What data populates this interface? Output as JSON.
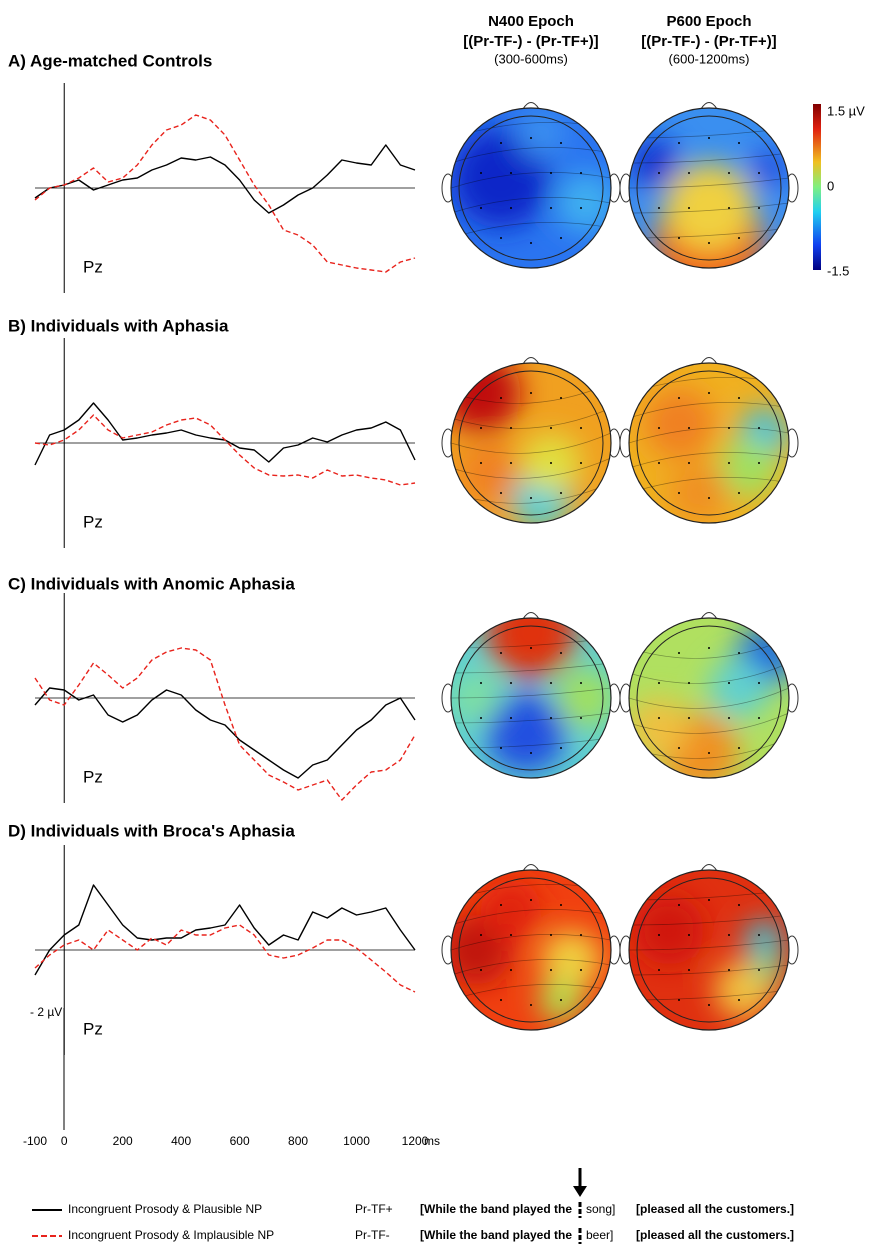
{
  "chart_data": [
    {
      "type": "line",
      "title": "A) Age-matched Controls",
      "label": "Pz",
      "x": [
        -100,
        -50,
        0,
        50,
        100,
        150,
        200,
        250,
        300,
        350,
        400,
        450,
        500,
        550,
        600,
        650,
        700,
        750,
        800,
        850,
        900,
        950,
        1000,
        1050,
        1100,
        1150,
        1200
      ],
      "xlim": [
        -100,
        1200
      ],
      "ylim": [
        2.1,
        -2.1
      ],
      "series": [
        {
          "color": "#000000",
          "dash": false,
          "values": [
            0.2,
            0,
            -0.06,
            -0.16,
            0.04,
            -0.06,
            -0.16,
            -0.2,
            -0.36,
            -0.46,
            -0.6,
            -0.56,
            -0.62,
            -0.46,
            -0.16,
            0.24,
            0.5,
            0.34,
            0.14,
            0,
            -0.26,
            -0.56,
            -0.5,
            -0.46,
            -0.86,
            -0.46,
            -0.36
          ]
        },
        {
          "color": "#e8231c",
          "dash": true,
          "values": [
            0.24,
            0,
            -0.06,
            -0.2,
            -0.4,
            -0.12,
            -0.2,
            -0.46,
            -0.86,
            -1.16,
            -1.26,
            -1.46,
            -1.36,
            -1.06,
            -0.56,
            -0.06,
            0.34,
            0.84,
            0.94,
            1.14,
            1.48,
            1.54,
            1.6,
            1.64,
            1.68,
            1.48,
            1.4
          ]
        }
      ]
    },
    {
      "type": "line",
      "title": "B) Individuals with Aphasia",
      "label": "Pz",
      "x": [
        -100,
        -50,
        0,
        50,
        100,
        150,
        200,
        250,
        300,
        350,
        400,
        450,
        500,
        550,
        600,
        650,
        700,
        750,
        800,
        850,
        900,
        950,
        1000,
        1050,
        1100,
        1150,
        1200
      ],
      "xlim": [
        -100,
        1200
      ],
      "ylim": [
        2.1,
        -2.1
      ],
      "series": [
        {
          "color": "#000000",
          "dash": false,
          "values": [
            0.44,
            -0.16,
            -0.26,
            -0.46,
            -0.8,
            -0.46,
            -0.06,
            -0.1,
            -0.16,
            -0.2,
            -0.26,
            -0.16,
            -0.1,
            -0.06,
            0.1,
            0.14,
            0.38,
            0.1,
            0.04,
            -0.1,
            -0.02,
            -0.16,
            -0.26,
            -0.3,
            -0.42,
            -0.26,
            0.34
          ]
        },
        {
          "color": "#e8231c",
          "dash": true,
          "values": [
            0,
            0.04,
            -0.06,
            -0.26,
            -0.56,
            -0.26,
            -0.1,
            -0.16,
            -0.22,
            -0.36,
            -0.46,
            -0.5,
            -0.36,
            -0.06,
            0.24,
            0.5,
            0.64,
            0.66,
            0.64,
            0.7,
            0.54,
            0.66,
            0.64,
            0.7,
            0.74,
            0.84,
            0.8
          ]
        }
      ]
    },
    {
      "type": "line",
      "title": "C) Individuals with Anomic Aphasia",
      "label": "Pz",
      "x": [
        -100,
        -50,
        0,
        50,
        100,
        150,
        200,
        250,
        300,
        350,
        400,
        450,
        500,
        550,
        600,
        650,
        700,
        750,
        800,
        850,
        900,
        950,
        1000,
        1050,
        1100,
        1150,
        1200
      ],
      "xlim": [
        -100,
        1200
      ],
      "ylim": [
        2.1,
        -2.1
      ],
      "series": [
        {
          "color": "#000000",
          "dash": false,
          "values": [
            0.14,
            -0.2,
            -0.16,
            0.04,
            -0.06,
            0.34,
            0.48,
            0.34,
            0.04,
            -0.16,
            -0.06,
            0.24,
            0.44,
            0.54,
            0.84,
            1.04,
            1.24,
            1.44,
            1.6,
            1.34,
            1.24,
            0.94,
            0.64,
            0.44,
            0.14,
            0,
            0.44
          ]
        },
        {
          "color": "#e8231c",
          "dash": true,
          "values": [
            -0.4,
            0.04,
            0.14,
            -0.26,
            -0.7,
            -0.46,
            -0.2,
            -0.4,
            -0.76,
            -0.92,
            -1,
            -0.96,
            -0.76,
            0.14,
            0.94,
            1.24,
            1.54,
            1.68,
            1.84,
            1.74,
            1.64,
            2.04,
            1.74,
            1.48,
            1.44,
            1.24,
            0.74
          ]
        }
      ]
    },
    {
      "type": "line",
      "title": "D) Individuals with Broca's Aphasia",
      "label": "Pz",
      "x": [
        -100,
        -50,
        0,
        50,
        100,
        150,
        200,
        250,
        300,
        350,
        400,
        450,
        500,
        550,
        600,
        650,
        700,
        750,
        800,
        850,
        900,
        950,
        1000,
        1050,
        1100,
        1150,
        1200
      ],
      "xlim": [
        -100,
        1200
      ],
      "ylim": [
        2.1,
        -2.1
      ],
      "series": [
        {
          "color": "#000000",
          "dash": false,
          "values": [
            0.5,
            0,
            -0.3,
            -0.5,
            -1.3,
            -0.9,
            -0.5,
            -0.24,
            -0.2,
            -0.24,
            -0.24,
            -0.4,
            -0.44,
            -0.5,
            -0.9,
            -0.44,
            -0.1,
            -0.3,
            -0.2,
            -0.76,
            -0.64,
            -0.84,
            -0.7,
            -0.76,
            -0.84,
            -0.4,
            0
          ]
        },
        {
          "color": "#e8231c",
          "dash": true,
          "values": [
            0.36,
            0.1,
            -0.1,
            -0.2,
            0,
            -0.4,
            -0.2,
            0,
            -0.24,
            -0.1,
            -0.4,
            -0.3,
            -0.3,
            -0.44,
            -0.5,
            -0.3,
            0.1,
            0.16,
            0.1,
            -0.04,
            -0.2,
            -0.2,
            -0.04,
            0.2,
            0.44,
            0.7,
            0.84
          ]
        }
      ]
    }
  ],
  "topomaps": {
    "columns": [
      {
        "title": "N400 Epoch",
        "contrast": "[(Pr-TF-) - (Pr-TF+)]",
        "window": "(300-600ms)"
      },
      {
        "title": "P600 Epoch",
        "contrast": "[(Pr-TF-) - (Pr-TF+)]",
        "window": "(600-1200ms)"
      }
    ],
    "colorbar": [
      "1.5 µV",
      "0",
      "-1.5"
    ]
  },
  "scale_bar": {
    "y_label": "- 2 µV",
    "x_unit": "ms",
    "xlim": [
      -100,
      1200
    ],
    "xticks": [
      -100,
      0,
      200,
      400,
      600,
      800,
      1000,
      1200
    ]
  },
  "legend": [
    {
      "color": "#000000",
      "dash": false,
      "label": "Incongruent Prosody & Plausible NP",
      "condition": "Pr-TF+",
      "sentence": "[While the band played the",
      "word": "song]",
      "rest": "[pleased all the customers.]"
    },
    {
      "color": "#e8231c",
      "dash": true,
      "label": "Incongruent Prosody & Implausible NP",
      "condition": "Pr-TF-",
      "sentence": "[While the band played the",
      "word": "beer]",
      "rest": "[pleased all the customers.]"
    }
  ]
}
